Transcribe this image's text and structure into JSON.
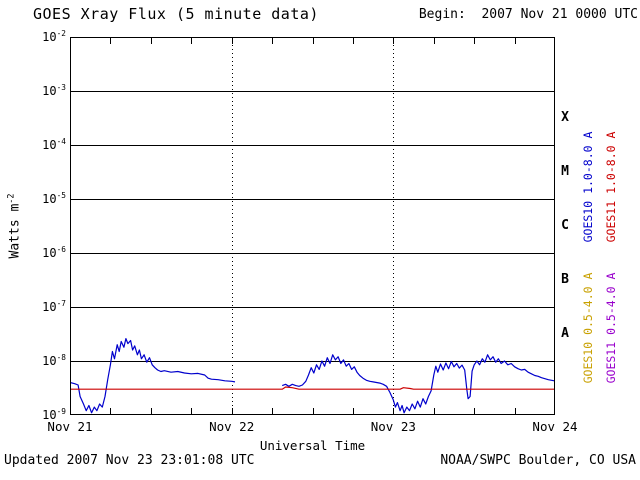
{
  "header": {
    "title": "GOES Xray Flux (5 minute data)",
    "begin": "Begin:  2007 Nov 21 0000 UTC"
  },
  "axes": {
    "x_label": "Universal Time",
    "y_label_base": "Watts m",
    "y_label_exponent": "-2"
  },
  "footer": {
    "updated": "Updated 2007 Nov 23 23:01:08 UTC",
    "credit": "NOAA/SWPC Boulder, CO USA"
  },
  "chart_data": {
    "type": "line",
    "title": "GOES Xray Flux (5 minute data)",
    "begin": "2007 Nov 21 0000 UTC",
    "xlabel": "Universal Time",
    "ylabel": "Watts m-2",
    "x_unit": "hours since 2007 Nov 21 0000 UTC",
    "x_range": [
      0,
      72
    ],
    "x_ticks": [
      {
        "hour": 0,
        "label": "Nov 21"
      },
      {
        "hour": 24,
        "label": "Nov 22"
      },
      {
        "hour": 48,
        "label": "Nov 23"
      },
      {
        "hour": 72,
        "label": "Nov 24"
      }
    ],
    "x_minor_tick_hours": 6,
    "y_scale": "log",
    "y_range_exponents": [
      -9,
      -2
    ],
    "y_tick_exponents": [
      -2,
      -3,
      -4,
      -5,
      -6,
      -7,
      -8,
      -9
    ],
    "grid": {
      "horizontal": "solid black line at each decade",
      "vertical": "dotted black line at internal day boundaries (24h, 48h)"
    },
    "flare_classes": [
      {
        "letter": "X",
        "center_exponent": -3.5
      },
      {
        "letter": "M",
        "center_exponent": -4.5
      },
      {
        "letter": "C",
        "center_exponent": -5.5
      },
      {
        "letter": "B",
        "center_exponent": -6.5
      },
      {
        "letter": "A",
        "center_exponent": -7.5
      }
    ],
    "legend": [
      {
        "label": "GOES10 1.0-8.0 A",
        "color": "#0000cc",
        "col": 0,
        "row": 0
      },
      {
        "label": "GOES11 1.0-8.0 A",
        "color": "#cc0000",
        "col": 1,
        "row": 0
      },
      {
        "label": "GOES10 0.5-4.0 A",
        "color": "#c8a000",
        "col": 0,
        "row": 1
      },
      {
        "label": "GOES11 0.5-4.0 A",
        "color": "#9900cc",
        "col": 1,
        "row": 1
      }
    ],
    "series": [
      {
        "name": "GOES10 1.0-8.0 A",
        "color": "#0000cc",
        "points": [
          [
            0,
            4e-09
          ],
          [
            0.7,
            3.8e-09
          ],
          [
            1.2,
            3.6e-09
          ],
          [
            1.5,
            2.2e-09
          ],
          [
            2,
            1.6e-09
          ],
          [
            2.4,
            1.2e-09
          ],
          [
            2.8,
            1.5e-09
          ],
          [
            3.2,
            1.1e-09
          ],
          [
            3.6,
            1.4e-09
          ],
          [
            4,
            1.2e-09
          ],
          [
            4.4,
            1.6e-09
          ],
          [
            4.8,
            1.4e-09
          ],
          [
            5.2,
            2.2e-09
          ],
          [
            5.6,
            4.5e-09
          ],
          [
            6,
            8.5e-09
          ],
          [
            6.3,
            1.5e-08
          ],
          [
            6.6,
            1.1e-08
          ],
          [
            7,
            2e-08
          ],
          [
            7.3,
            1.5e-08
          ],
          [
            7.6,
            2.3e-08
          ],
          [
            8,
            1.8e-08
          ],
          [
            8.3,
            2.6e-08
          ],
          [
            8.6,
            2.1e-08
          ],
          [
            9,
            2.4e-08
          ],
          [
            9.3,
            1.6e-08
          ],
          [
            9.6,
            1.9e-08
          ],
          [
            10,
            1.3e-08
          ],
          [
            10.3,
            1.6e-08
          ],
          [
            10.6,
            1.1e-08
          ],
          [
            11,
            1.3e-08
          ],
          [
            11.4,
            9.5e-09
          ],
          [
            11.8,
            1.15e-08
          ],
          [
            12.2,
            8.5e-09
          ],
          [
            12.6,
            7.5e-09
          ],
          [
            13,
            6.8e-09
          ],
          [
            13.5,
            6.4e-09
          ],
          [
            14,
            6.6e-09
          ],
          [
            15,
            6.2e-09
          ],
          [
            16,
            6.4e-09
          ],
          [
            17,
            6e-09
          ],
          [
            18,
            5.8e-09
          ],
          [
            19,
            5.9e-09
          ],
          [
            20,
            5.5e-09
          ],
          [
            20.5,
            4.8e-09
          ],
          [
            21,
            4.6e-09
          ],
          [
            22,
            4.5e-09
          ],
          [
            23,
            4.3e-09
          ],
          [
            24,
            4.2e-09
          ],
          [
            24.5,
            4.1e-09
          ],
          [
            25,
            null
          ],
          [
            31.5,
            3.5e-09
          ],
          [
            32,
            3.7e-09
          ],
          [
            32.5,
            3.4e-09
          ],
          [
            33,
            3.7e-09
          ],
          [
            33.5,
            3.5e-09
          ],
          [
            34,
            3.4e-09
          ],
          [
            34.5,
            3.6e-09
          ],
          [
            35,
            4.2e-09
          ],
          [
            35.4,
            5.5e-09
          ],
          [
            35.8,
            7.5e-09
          ],
          [
            36.2,
            6e-09
          ],
          [
            36.6,
            8.5e-09
          ],
          [
            37,
            7e-09
          ],
          [
            37.4,
            1e-08
          ],
          [
            37.8,
            8e-09
          ],
          [
            38.2,
            1.15e-08
          ],
          [
            38.6,
            9e-09
          ],
          [
            39,
            1.3e-08
          ],
          [
            39.4,
            1.05e-08
          ],
          [
            39.8,
            1.2e-08
          ],
          [
            40.2,
            9e-09
          ],
          [
            40.6,
            1.05e-08
          ],
          [
            41,
            8e-09
          ],
          [
            41.4,
            9e-09
          ],
          [
            41.8,
            7e-09
          ],
          [
            42.2,
            7.8e-09
          ],
          [
            42.6,
            6.2e-09
          ],
          [
            43,
            5.4e-09
          ],
          [
            43.5,
            4.8e-09
          ],
          [
            44,
            4.4e-09
          ],
          [
            44.5,
            4.2e-09
          ],
          [
            45,
            4.1e-09
          ],
          [
            45.5,
            4e-09
          ],
          [
            46,
            3.9e-09
          ],
          [
            46.5,
            3.7e-09
          ],
          [
            47,
            3.4e-09
          ],
          [
            47.5,
            2.6e-09
          ],
          [
            48,
            1.9e-09
          ],
          [
            48.3,
            1.4e-09
          ],
          [
            48.6,
            1.7e-09
          ],
          [
            49,
            1.2e-09
          ],
          [
            49.3,
            1.5e-09
          ],
          [
            49.6,
            1.1e-09
          ],
          [
            50,
            1.4e-09
          ],
          [
            50.4,
            1.2e-09
          ],
          [
            50.8,
            1.6e-09
          ],
          [
            51.2,
            1.3e-09
          ],
          [
            51.6,
            1.8e-09
          ],
          [
            52,
            1.4e-09
          ],
          [
            52.4,
            2e-09
          ],
          [
            52.8,
            1.6e-09
          ],
          [
            53.2,
            2.2e-09
          ],
          [
            53.6,
            2.8e-09
          ],
          [
            54,
            5.5e-09
          ],
          [
            54.3,
            8e-09
          ],
          [
            54.6,
            6.2e-09
          ],
          [
            55,
            8.8e-09
          ],
          [
            55.4,
            6.8e-09
          ],
          [
            55.8,
            9.2e-09
          ],
          [
            56.2,
            7.2e-09
          ],
          [
            56.6,
            9.8e-09
          ],
          [
            57,
            7.8e-09
          ],
          [
            57.4,
            9e-09
          ],
          [
            57.8,
            7.4e-09
          ],
          [
            58.2,
            8.4e-09
          ],
          [
            58.6,
            6.8e-09
          ],
          [
            58.9,
            3e-09
          ],
          [
            59.1,
            2e-09
          ],
          [
            59.4,
            2.2e-09
          ],
          [
            59.7,
            6.5e-09
          ],
          [
            60,
            8.5e-09
          ],
          [
            60.4,
            1e-08
          ],
          [
            60.8,
            8.5e-09
          ],
          [
            61.2,
            1.1e-08
          ],
          [
            61.6,
            9.5e-09
          ],
          [
            62,
            1.3e-08
          ],
          [
            62.4,
            1.05e-08
          ],
          [
            62.8,
            1.2e-08
          ],
          [
            63.2,
            9.5e-09
          ],
          [
            63.6,
            1.1e-08
          ],
          [
            64,
            9e-09
          ],
          [
            64.5,
            1e-08
          ],
          [
            65,
            8.5e-09
          ],
          [
            65.5,
            9e-09
          ],
          [
            66,
            7.8e-09
          ],
          [
            66.5,
            7.2e-09
          ],
          [
            67,
            6.8e-09
          ],
          [
            67.5,
            7e-09
          ],
          [
            68,
            6.2e-09
          ],
          [
            68.5,
            5.8e-09
          ],
          [
            69,
            5.4e-09
          ],
          [
            69.5,
            5.2e-09
          ],
          [
            70,
            4.9e-09
          ],
          [
            70.5,
            4.7e-09
          ],
          [
            71,
            4.5e-09
          ],
          [
            71.5,
            4.4e-09
          ],
          [
            71.9,
            4.3e-09
          ]
        ]
      },
      {
        "name": "GOES11 1.0-8.0 A",
        "color": "#cc0000",
        "points": [
          [
            0,
            3e-09
          ],
          [
            31.5,
            3e-09
          ],
          [
            32,
            3.3e-09
          ],
          [
            33,
            3.2e-09
          ],
          [
            34,
            3e-09
          ],
          [
            49,
            3e-09
          ],
          [
            49.5,
            3.2e-09
          ],
          [
            50.5,
            3.1e-09
          ],
          [
            51,
            3e-09
          ],
          [
            72,
            3e-09
          ]
        ]
      },
      {
        "name": "GOES10 0.5-4.0 A",
        "color": "#c8a000",
        "points": [],
        "note": "below plot range (under 1e-9)"
      },
      {
        "name": "GOES11 0.5-4.0 A",
        "color": "#9900cc",
        "points": [],
        "note": "below plot range (under 1e-9)"
      }
    ]
  }
}
